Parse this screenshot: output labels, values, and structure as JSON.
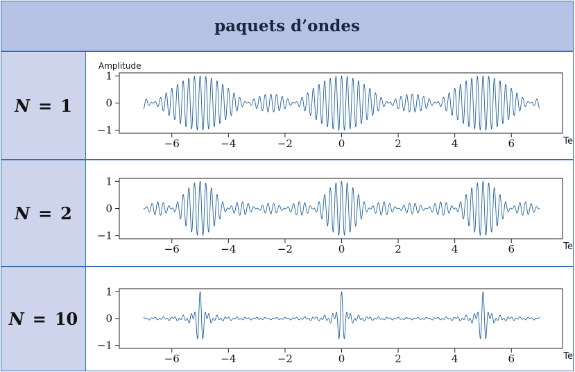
{
  "title": "paquets d’ondes",
  "rows": [
    {
      "n_symbol": "N",
      "equals": "=",
      "n_value": "1"
    },
    {
      "n_symbol": "N",
      "equals": "=",
      "n_value": "2"
    },
    {
      "n_symbol": "N",
      "equals": "=",
      "n_value": "10"
    }
  ],
  "colors": {
    "header_bg": "#b7c3e4",
    "label_bg": "#cdd4ec",
    "border": "#2f6fb4",
    "wave": "#1f5f9e"
  },
  "chart_data": [
    {
      "type": "line",
      "title": "",
      "ylabel": "Amplitude",
      "xlabel": "Temps",
      "xlim": [
        -7,
        7
      ],
      "ylim": [
        -1,
        1
      ],
      "x_ticks": [
        -6,
        -4,
        -2,
        0,
        2,
        4,
        6
      ],
      "x_tick_labels": [
        "−6",
        "−4",
        "−2",
        "0",
        "2",
        "4",
        "6"
      ],
      "y_ticks": [
        -1,
        0,
        1
      ],
      "y_tick_labels": [
        "−1",
        "0",
        "1"
      ],
      "grid": false,
      "series": [
        {
          "description": "wave packet (N = 1)",
          "N": 1,
          "packet_period": 5,
          "carrier_frequency": 5,
          "peaks": [
            {
              "x": -5,
              "y": 1
            },
            {
              "x": 0,
              "y": 1
            },
            {
              "x": 5,
              "y": 1
            }
          ],
          "secondary_maxima": [
            {
              "x": -2.5,
              "y": 0.33
            },
            {
              "x": 2.5,
              "y": 0.33
            }
          ]
        }
      ]
    },
    {
      "type": "line",
      "title": "",
      "ylabel": "",
      "xlabel": "Temps",
      "xlim": [
        -7,
        7
      ],
      "ylim": [
        -1,
        1
      ],
      "x_ticks": [
        -6,
        -4,
        -2,
        0,
        2,
        4,
        6
      ],
      "x_tick_labels": [
        "−6",
        "−4",
        "−2",
        "0",
        "2",
        "4",
        "6"
      ],
      "y_ticks": [
        -1,
        0,
        1
      ],
      "y_tick_labels": [
        "−1",
        "0",
        "1"
      ],
      "grid": false,
      "series": [
        {
          "description": "wave packet (N = 2)",
          "N": 2,
          "packet_period": 5,
          "carrier_frequency": 5,
          "peaks": [
            {
              "x": -5,
              "y": 1
            },
            {
              "x": 0,
              "y": 1
            },
            {
              "x": 5,
              "y": 1
            }
          ],
          "secondary_maxima": [
            {
              "x": -3.3,
              "y": 0.2
            },
            {
              "x": -1.7,
              "y": 0.2
            },
            {
              "x": 1.7,
              "y": 0.2
            },
            {
              "x": 3.3,
              "y": 0.2
            }
          ]
        }
      ]
    },
    {
      "type": "line",
      "title": "",
      "ylabel": "",
      "xlabel": "Temps",
      "xlim": [
        -7,
        7
      ],
      "ylim": [
        -1,
        1
      ],
      "x_ticks": [
        -6,
        -4,
        -2,
        0,
        2,
        4,
        6
      ],
      "x_tick_labels": [
        "−6",
        "−4",
        "−2",
        "0",
        "2",
        "4",
        "6"
      ],
      "y_ticks": [
        -1,
        0,
        1
      ],
      "y_tick_labels": [
        "−1",
        "0",
        "1"
      ],
      "grid": false,
      "series": [
        {
          "description": "wave packet (N = 10)",
          "N": 10,
          "packet_period": 5,
          "carrier_frequency": 5,
          "peaks": [
            {
              "x": -5,
              "y": 1
            },
            {
              "x": 0,
              "y": 1
            },
            {
              "x": 5,
              "y": 1
            }
          ],
          "background_amplitude": 0.05
        }
      ]
    }
  ]
}
